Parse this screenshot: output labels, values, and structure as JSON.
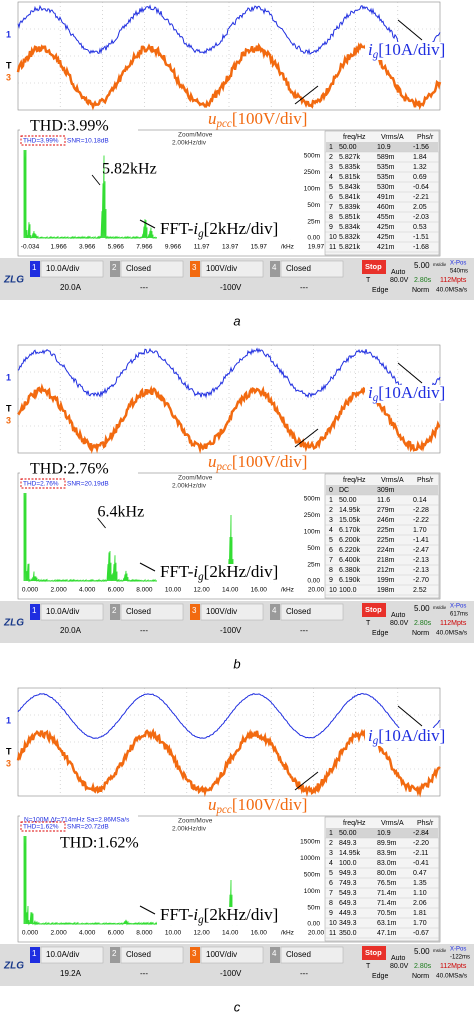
{
  "panels": [
    {
      "markers": [
        "1",
        "T",
        "3"
      ],
      "ig": {
        "symbol": "i",
        "sub": "g",
        "scale": "[10A/div]"
      },
      "upcc": {
        "symbol": "u",
        "sub": "pcc",
        "scale": "[100V/div]"
      },
      "thd": "THD:3.99%",
      "status": [
        "THD=3.99%",
        "SNR=10.18dB"
      ],
      "zoom": "Zoom/Move",
      "hdiv": "2.00kHz/div",
      "peak": "5.82kHz",
      "fft": {
        "prefix": "FFT-",
        "symbol": "i",
        "sub": "g",
        "scale": "[2kHz/div]"
      },
      "yticks": [
        "500m",
        "250m",
        "100m",
        "50m",
        "25m",
        "0.00"
      ],
      "xticks": [
        "-0.034",
        "1.966",
        "3.966",
        "5.966",
        "7.966",
        "9.966",
        "11.97",
        "13.97",
        "15.97",
        "/kHz",
        "19.97"
      ],
      "table": {
        "columns": [
          "freq/Hz",
          "Vrms/A",
          "Phs/r"
        ],
        "rows": [
          [
            "1",
            "50.00",
            "10.9",
            "-1.56"
          ],
          [
            "2",
            "5.827k",
            "589m",
            "1.84"
          ],
          [
            "3",
            "5.835k",
            "535m",
            "1.32"
          ],
          [
            "4",
            "5.815k",
            "535m",
            "0.69"
          ],
          [
            "5",
            "5.843k",
            "530m",
            "-0.64"
          ],
          [
            "6",
            "5.841k",
            "491m",
            "-2.21"
          ],
          [
            "7",
            "5.839k",
            "460m",
            "2.05"
          ],
          [
            "8",
            "5.851k",
            "455m",
            "-2.03"
          ],
          [
            "9",
            "5.834k",
            "425m",
            "0.53"
          ],
          [
            "10",
            "5.832k",
            "425m",
            "-1.51"
          ],
          [
            "11",
            "5.821k",
            "421m",
            "-1.68"
          ]
        ]
      },
      "logo": "ZLG",
      "channels": [
        {
          "id": "1",
          "scale": "10.0A/div",
          "offset": "20.0A"
        },
        {
          "id": "2",
          "scale": "Closed",
          "offset": "---"
        },
        {
          "id": "3",
          "scale": "100V/div",
          "offset": "-100V"
        },
        {
          "id": "4",
          "scale": "Closed",
          "offset": "---"
        }
      ],
      "run": {
        "state": "Stop",
        "mode": "Auto",
        "timebase": "5.00",
        "unit": "ms/div",
        "xpos": "X-Pos",
        "xpos_value": "540ms",
        "trig": "T",
        "level": "80.0V",
        "time": "2.80s",
        "pts": "112Mpts",
        "edge": "Edge",
        "norm": "Norm",
        "rate": "40.0MSa/s"
      },
      "caption": "a"
    },
    {
      "markers": [
        "1",
        "T",
        "3"
      ],
      "ig": {
        "symbol": "i",
        "sub": "g",
        "scale": "[10A/div]"
      },
      "upcc": {
        "symbol": "u",
        "sub": "pcc",
        "scale": "[100V/div]"
      },
      "thd": "THD:2.76%",
      "status": [
        "THD=2.76%",
        "SNR=20.19dB"
      ],
      "zoom": "Zoom/Move",
      "hdiv": "2.00kHz/div",
      "peak": "6.4kHz",
      "fft": {
        "prefix": "FFT-",
        "symbol": "i",
        "sub": "g",
        "scale": "[2kHz/div]"
      },
      "yticks": [
        "500m",
        "250m",
        "100m",
        "50m",
        "25m",
        "0.00"
      ],
      "xticks": [
        "0.000",
        "2.000",
        "4.000",
        "6.000",
        "8.000",
        "10.00",
        "12.00",
        "14.00",
        "16.00",
        "/kHz",
        "20.00"
      ],
      "table": {
        "columns": [
          "freq/Hz",
          "Vrms/A",
          "Phs/r"
        ],
        "rows": [
          [
            "0",
            "DC",
            "309m"
          ],
          [
            "1",
            "50.00",
            "11.6",
            "0.14"
          ],
          [
            "2",
            "14.95k",
            "279m",
            "-2.28"
          ],
          [
            "3",
            "15.05k",
            "246m",
            "-2.22"
          ],
          [
            "4",
            "6.170k",
            "225m",
            "1.70"
          ],
          [
            "5",
            "6.200k",
            "225m",
            "-1.41"
          ],
          [
            "6",
            "6.220k",
            "224m",
            "-2.47"
          ],
          [
            "7",
            "6.400k",
            "218m",
            "-2.13"
          ],
          [
            "8",
            "6.380k",
            "212m",
            "-2.13"
          ],
          [
            "9",
            "6.190k",
            "199m",
            "-2.70"
          ],
          [
            "10",
            "100.0",
            "198m",
            "2.52"
          ]
        ]
      },
      "logo": "ZLG",
      "channels": [
        {
          "id": "1",
          "scale": "10.0A/div",
          "offset": "20.0A"
        },
        {
          "id": "2",
          "scale": "Closed",
          "offset": "---"
        },
        {
          "id": "3",
          "scale": "100V/div",
          "offset": "-100V"
        },
        {
          "id": "4",
          "scale": "Closed",
          "offset": "---"
        }
      ],
      "run": {
        "state": "Stop",
        "mode": "Auto",
        "timebase": "5.00",
        "unit": "ms/div",
        "xpos": "X-Pos",
        "xpos_value": "617ms",
        "trig": "T",
        "level": "80.0V",
        "time": "2.80s",
        "pts": "112Mpts",
        "edge": "Edge",
        "norm": "Norm",
        "rate": "40.0MSa/s"
      },
      "caption": "b"
    },
    {
      "markers": [
        "1",
        "T",
        "3"
      ],
      "ig": {
        "symbol": "i",
        "sub": "g",
        "scale": "[10A/div]"
      },
      "upcc": {
        "symbol": "u",
        "sub": "pcc",
        "scale": "[100V/div]"
      },
      "thd": "THD:1.62%",
      "header": "N=100M  Δf=714mHz  Sa=2.86MSa/s",
      "status": [
        "THD=1.62%",
        "SNR=20.72dB"
      ],
      "zoom": "Zoom/Move",
      "hdiv": "2.00kHz/div",
      "fft": {
        "prefix": "FFT-",
        "symbol": "i",
        "sub": "g",
        "scale": "[2kHz/div]"
      },
      "yticks": [
        "1500m",
        "1000m",
        "500m",
        "100m",
        "50m",
        "0.00"
      ],
      "xticks": [
        "0.000",
        "2.000",
        "4.000",
        "6.000",
        "8.000",
        "10.00",
        "12.00",
        "14.00",
        "16.00",
        "/kHz",
        "20.00"
      ],
      "table": {
        "columns": [
          "freq/Hz",
          "Vrms/A",
          "Phs/r"
        ],
        "rows": [
          [
            "1",
            "50.00",
            "10.9",
            "-2.84"
          ],
          [
            "2",
            "849.3",
            "89.9m",
            "-2.20"
          ],
          [
            "3",
            "14.95k",
            "83.9m",
            "-2.11"
          ],
          [
            "4",
            "100.0",
            "83.0m",
            "-0.41"
          ],
          [
            "5",
            "949.3",
            "80.0m",
            "0.47"
          ],
          [
            "6",
            "749.3",
            "76.5m",
            "1.35"
          ],
          [
            "7",
            "549.3",
            "71.4m",
            "1.10"
          ],
          [
            "8",
            "649.3",
            "71.4m",
            "2.06"
          ],
          [
            "9",
            "449.3",
            "70.5m",
            "1.81"
          ],
          [
            "10",
            "349.3",
            "63.1m",
            "1.70"
          ],
          [
            "11",
            "350.0",
            "47.1m",
            "-0.67"
          ]
        ]
      },
      "logo": "ZLG",
      "channels": [
        {
          "id": "1",
          "scale": "10.0A/div",
          "offset": "19.2A"
        },
        {
          "id": "2",
          "scale": "Closed",
          "offset": "---"
        },
        {
          "id": "3",
          "scale": "100V/div",
          "offset": "-100V"
        },
        {
          "id": "4",
          "scale": "Closed",
          "offset": "---"
        }
      ],
      "run": {
        "state": "Stop",
        "mode": "Auto",
        "timebase": "5.00",
        "unit": "ms/div",
        "xpos": "X-Pos",
        "xpos_value": "-122ms",
        "trig": "T",
        "level": "80.0V",
        "time": "2.80s",
        "pts": "112Mpts",
        "edge": "Edge",
        "norm": "Norm",
        "rate": "40.0MSa/s"
      },
      "caption": "c"
    }
  ]
}
